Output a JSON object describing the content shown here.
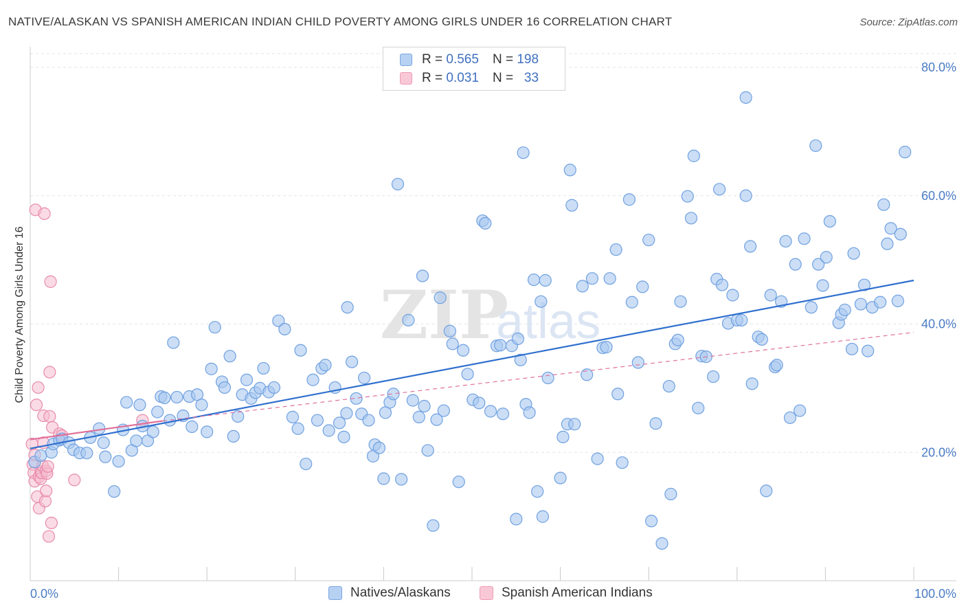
{
  "header": {
    "title": "NATIVE/ALASKAN VS SPANISH AMERICAN INDIAN CHILD POVERTY AMONG GIRLS UNDER 16 CORRELATION CHART",
    "source": "Source: ZipAtlas.com"
  },
  "colors": {
    "blue": "#6fa0e0",
    "blue_fill": "#a9c8f0",
    "blue_line": "#2f6fce",
    "pink": "#e88aaa",
    "pink_fill": "#f6bdd0",
    "pink_line": "#e0709a",
    "axis_text": "#4a7cc4"
  },
  "watermark": {
    "zip": "ZIP",
    "atlas": "atlas"
  },
  "legend_top": {
    "rows": [
      {
        "r_label": "R =",
        "r_value": "0.565",
        "n_label": "N =",
        "n_value": "198"
      },
      {
        "r_label": "R =",
        "r_value": "0.031",
        "n_label": "N =",
        "n_value": "33"
      }
    ]
  },
  "legend_bottom": {
    "items": [
      {
        "label": "Natives/Alaskans"
      },
      {
        "label": "Spanish American Indians"
      }
    ]
  },
  "chart_data": {
    "type": "scatter",
    "title": "NATIVE/ALASKAN VS SPANISH AMERICAN INDIAN CHILD POVERTY AMONG GIRLS UNDER 16 CORRELATION CHART",
    "xlabel": "",
    "ylabel": "Child Poverty Among Girls Under 16",
    "xlim": [
      0,
      100
    ],
    "ylim": [
      0,
      80
    ],
    "x_tick_labels": [
      "0.0%",
      "100.0%"
    ],
    "y_ticks": [
      20,
      40,
      60,
      80
    ],
    "y_tick_labels": [
      "20.0%",
      "40.0%",
      "60.0%",
      "80.0%"
    ],
    "grid": true,
    "legend_position": "top-center",
    "series": [
      {
        "name": "Natives/Alaskans",
        "r": 0.565,
        "n": 198,
        "trend": {
          "x": [
            0,
            100
          ],
          "y": [
            20.6,
            46.8
          ]
        },
        "points": [
          [
            0.5,
            18.5
          ],
          [
            1.2,
            19.5
          ],
          [
            2.4,
            20.0
          ],
          [
            2.6,
            21.3
          ],
          [
            3.3,
            21.9
          ],
          [
            3.6,
            22.1
          ],
          [
            4.4,
            21.5
          ],
          [
            4.9,
            20.4
          ],
          [
            5.6,
            19.9
          ],
          [
            6.4,
            19.9
          ],
          [
            6.8,
            22.3
          ],
          [
            7.8,
            23.7
          ],
          [
            8.3,
            21.5
          ],
          [
            8.5,
            19.3
          ],
          [
            9.5,
            13.9
          ],
          [
            10.0,
            18.6
          ],
          [
            10.5,
            23.5
          ],
          [
            10.9,
            27.8
          ],
          [
            11.5,
            20.3
          ],
          [
            12.0,
            21.8
          ],
          [
            12.4,
            27.4
          ],
          [
            12.7,
            24.1
          ],
          [
            13.3,
            21.8
          ],
          [
            13.9,
            23.2
          ],
          [
            14.4,
            26.3
          ],
          [
            14.8,
            28.7
          ],
          [
            15.2,
            28.5
          ],
          [
            15.8,
            25.0
          ],
          [
            16.2,
            37.1
          ],
          [
            16.6,
            28.6
          ],
          [
            17.3,
            25.7
          ],
          [
            18.0,
            28.7
          ],
          [
            18.3,
            24.0
          ],
          [
            18.9,
            29.0
          ],
          [
            19.4,
            27.4
          ],
          [
            20.0,
            23.2
          ],
          [
            20.5,
            33.0
          ],
          [
            20.9,
            39.5
          ],
          [
            21.7,
            31.0
          ],
          [
            22.0,
            30.1
          ],
          [
            22.6,
            35.0
          ],
          [
            23.0,
            22.5
          ],
          [
            23.5,
            25.6
          ],
          [
            24.0,
            29.0
          ],
          [
            24.5,
            31.3
          ],
          [
            25.0,
            28.4
          ],
          [
            25.5,
            29.3
          ],
          [
            26.0,
            30.0
          ],
          [
            26.4,
            33.1
          ],
          [
            27.0,
            29.4
          ],
          [
            27.6,
            30.1
          ],
          [
            28.1,
            40.5
          ],
          [
            28.8,
            39.2
          ],
          [
            29.7,
            25.5
          ],
          [
            30.3,
            23.7
          ],
          [
            30.6,
            35.9
          ],
          [
            31.2,
            18.2
          ],
          [
            32.0,
            31.3
          ],
          [
            32.5,
            25.0
          ],
          [
            33.0,
            33.1
          ],
          [
            33.4,
            33.6
          ],
          [
            33.8,
            23.4
          ],
          [
            34.5,
            30.1
          ],
          [
            35.0,
            24.6
          ],
          [
            35.5,
            22.4
          ],
          [
            35.8,
            26.1
          ],
          [
            35.9,
            42.6
          ],
          [
            36.4,
            34.1
          ],
          [
            36.9,
            28.4
          ],
          [
            37.5,
            26.0
          ],
          [
            37.8,
            31.6
          ],
          [
            38.3,
            25.0
          ],
          [
            38.8,
            19.4
          ],
          [
            39.0,
            21.2
          ],
          [
            39.5,
            20.7
          ],
          [
            40.0,
            15.9
          ],
          [
            40.2,
            26.2
          ],
          [
            40.7,
            27.8
          ],
          [
            41.1,
            29.1
          ],
          [
            41.6,
            61.8
          ],
          [
            42.0,
            15.8
          ],
          [
            42.8,
            40.6
          ],
          [
            43.3,
            28.1
          ],
          [
            44.0,
            25.5
          ],
          [
            44.4,
            47.5
          ],
          [
            44.6,
            27.2
          ],
          [
            45.0,
            20.3
          ],
          [
            45.6,
            8.6
          ],
          [
            46.0,
            25.1
          ],
          [
            46.4,
            44.1
          ],
          [
            46.8,
            26.5
          ],
          [
            47.5,
            38.9
          ],
          [
            47.8,
            36.9
          ],
          [
            48.5,
            15.4
          ],
          [
            49.0,
            35.9
          ],
          [
            49.5,
            32.2
          ],
          [
            50.1,
            28.2
          ],
          [
            50.8,
            27.7
          ],
          [
            51.2,
            56.1
          ],
          [
            51.5,
            55.7
          ],
          [
            52.1,
            26.4
          ],
          [
            52.8,
            36.6
          ],
          [
            53.2,
            36.7
          ],
          [
            53.5,
            26.0
          ],
          [
            54.5,
            36.6
          ],
          [
            55.0,
            9.6
          ],
          [
            55.2,
            37.7
          ],
          [
            55.5,
            34.4
          ],
          [
            55.8,
            66.7
          ],
          [
            56.1,
            27.5
          ],
          [
            56.5,
            26.2
          ],
          [
            57.0,
            46.9
          ],
          [
            57.4,
            13.9
          ],
          [
            57.8,
            43.5
          ],
          [
            58.3,
            46.8
          ],
          [
            58.6,
            31.6
          ],
          [
            60.0,
            16.0
          ],
          [
            60.3,
            22.4
          ],
          [
            60.8,
            24.4
          ],
          [
            61.1,
            64.0
          ],
          [
            61.3,
            58.5
          ],
          [
            61.6,
            24.4
          ],
          [
            62.5,
            45.9
          ],
          [
            63.0,
            32.1
          ],
          [
            63.6,
            47.1
          ],
          [
            64.2,
            19.0
          ],
          [
            64.8,
            36.3
          ],
          [
            65.2,
            36.4
          ],
          [
            65.6,
            47.1
          ],
          [
            66.3,
            51.6
          ],
          [
            66.5,
            29.1
          ],
          [
            67.0,
            18.4
          ],
          [
            67.8,
            59.4
          ],
          [
            68.1,
            43.4
          ],
          [
            68.8,
            34.0
          ],
          [
            69.3,
            45.8
          ],
          [
            70.0,
            53.1
          ],
          [
            70.3,
            9.3
          ],
          [
            70.8,
            24.5
          ],
          [
            71.5,
            5.8
          ],
          [
            72.3,
            30.3
          ],
          [
            72.5,
            13.5
          ],
          [
            73.0,
            36.9
          ],
          [
            73.3,
            37.5
          ],
          [
            73.6,
            43.5
          ],
          [
            74.4,
            59.9
          ],
          [
            74.8,
            56.5
          ],
          [
            75.1,
            66.2
          ],
          [
            75.6,
            26.9
          ],
          [
            76.0,
            35.0
          ],
          [
            76.5,
            34.9
          ],
          [
            77.3,
            31.8
          ],
          [
            77.7,
            47.0
          ],
          [
            78.0,
            61.0
          ],
          [
            78.3,
            46.1
          ],
          [
            79.0,
            40.1
          ],
          [
            79.5,
            44.5
          ],
          [
            80.0,
            40.6
          ],
          [
            80.5,
            40.6
          ],
          [
            81.0,
            60.0
          ],
          [
            81.5,
            52.1
          ],
          [
            81.7,
            30.7
          ],
          [
            82.4,
            38.0
          ],
          [
            82.8,
            37.6
          ],
          [
            83.3,
            14.0
          ],
          [
            83.8,
            44.5
          ],
          [
            84.3,
            33.3
          ],
          [
            84.5,
            33.6
          ],
          [
            85.0,
            43.5
          ],
          [
            85.5,
            52.9
          ],
          [
            86.0,
            25.4
          ],
          [
            86.6,
            49.3
          ],
          [
            87.1,
            26.5
          ],
          [
            87.6,
            53.3
          ],
          [
            88.4,
            42.6
          ],
          [
            88.9,
            67.8
          ],
          [
            89.2,
            49.3
          ],
          [
            89.7,
            46.0
          ],
          [
            90.1,
            50.4
          ],
          [
            90.5,
            56.0
          ],
          [
            91.5,
            40.2
          ],
          [
            91.8,
            41.5
          ],
          [
            92.2,
            42.2
          ],
          [
            93.0,
            36.1
          ],
          [
            93.2,
            51.0
          ],
          [
            94.0,
            43.1
          ],
          [
            94.4,
            46.1
          ],
          [
            94.8,
            35.8
          ],
          [
            95.3,
            42.6
          ],
          [
            96.2,
            43.4
          ],
          [
            96.6,
            58.6
          ],
          [
            97.0,
            52.5
          ],
          [
            97.4,
            54.9
          ],
          [
            98.2,
            43.6
          ],
          [
            98.5,
            54.0
          ],
          [
            99.0,
            66.8
          ],
          [
            81.0,
            75.3
          ],
          [
            58.0,
            10.0
          ]
        ]
      },
      {
        "name": "Spanish American Indians",
        "r": 0.031,
        "n": 33,
        "trend": {
          "x": [
            0,
            15
          ],
          "y": [
            22.0,
            24.9
          ]
        },
        "trend_dashed": {
          "x": [
            15,
            100
          ],
          "y": [
            24.9,
            38.7
          ]
        },
        "points": [
          [
            0.2,
            21.3
          ],
          [
            0.3,
            18.1
          ],
          [
            0.4,
            16.8
          ],
          [
            0.5,
            19.6
          ],
          [
            0.5,
            15.5
          ],
          [
            0.6,
            57.8
          ],
          [
            0.7,
            27.4
          ],
          [
            0.8,
            13.1
          ],
          [
            0.9,
            30.1
          ],
          [
            1.0,
            11.3
          ],
          [
            1.0,
            16.2
          ],
          [
            1.2,
            17.0
          ],
          [
            1.2,
            15.9
          ],
          [
            1.3,
            16.8
          ],
          [
            1.4,
            17.9
          ],
          [
            1.5,
            25.7
          ],
          [
            1.5,
            21.5
          ],
          [
            1.6,
            57.2
          ],
          [
            1.7,
            12.4
          ],
          [
            1.8,
            17.1
          ],
          [
            1.8,
            14.0
          ],
          [
            1.9,
            16.7
          ],
          [
            2.0,
            17.8
          ],
          [
            2.1,
            6.9
          ],
          [
            2.2,
            25.6
          ],
          [
            2.2,
            32.5
          ],
          [
            2.3,
            46.6
          ],
          [
            2.4,
            9.0
          ],
          [
            2.5,
            23.9
          ],
          [
            3.3,
            22.9
          ],
          [
            3.6,
            22.6
          ],
          [
            5.0,
            15.7
          ],
          [
            12.7,
            25.0
          ]
        ]
      }
    ]
  }
}
